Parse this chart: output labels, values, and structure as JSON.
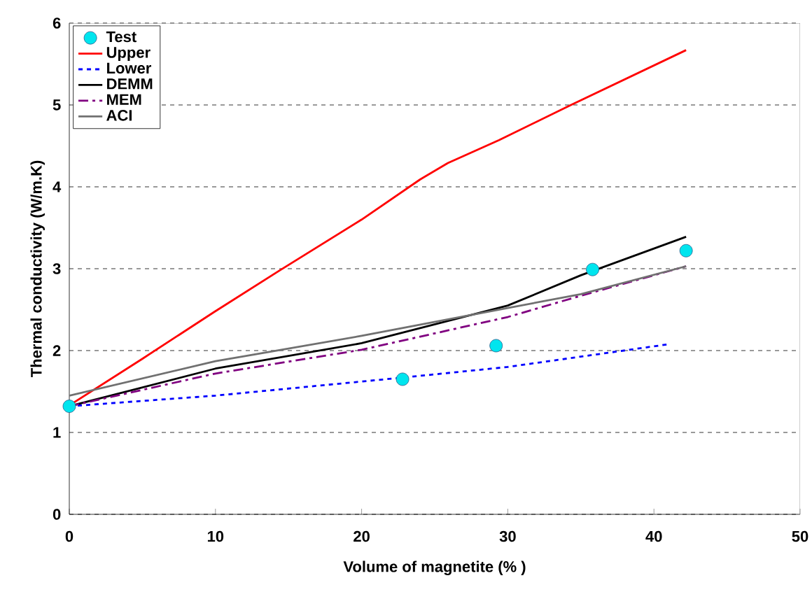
{
  "chart_data": {
    "type": "line",
    "xlabel": "Volume of magnetite (% )",
    "ylabel": "Thermal conductivity (W/m.K)",
    "xlim": [
      0,
      50
    ],
    "xticks": [
      0,
      10,
      20,
      30,
      40,
      50
    ],
    "ylim": [
      0,
      6
    ],
    "yticks": [
      0,
      1,
      2,
      3,
      4,
      5,
      6
    ],
    "grid": "y",
    "legend": "top left",
    "series": [
      {
        "name": "Test",
        "type": "scatter",
        "marker": "circle",
        "color": "#00e5ee",
        "x": [
          0,
          22.8,
          29.2,
          35.8,
          42.2
        ],
        "values": [
          1.32,
          1.65,
          2.06,
          2.99,
          3.22
        ]
      },
      {
        "name": "Upper",
        "line_style": "solid",
        "color": "#ff0000",
        "x": [
          0,
          5,
          9.9,
          14.4,
          20,
          24,
          25.9,
          29.4,
          34.2,
          42.2
        ],
        "values": [
          1.33,
          1.9,
          2.47,
          2.98,
          3.6,
          4.09,
          4.29,
          4.57,
          4.99,
          5.67
        ]
      },
      {
        "name": "Lower",
        "line_style": "dashed",
        "color": "#0000ff",
        "x": [
          0,
          10,
          22.8,
          30,
          41.1
        ],
        "values": [
          1.32,
          1.45,
          1.67,
          1.8,
          2.08
        ]
      },
      {
        "name": "DEMM",
        "line_style": "solid",
        "color": "#000000",
        "x": [
          0,
          10,
          20,
          30,
          35,
          42.2
        ],
        "values": [
          1.32,
          1.78,
          2.09,
          2.55,
          2.92,
          3.39
        ]
      },
      {
        "name": "MEM",
        "line_style": "dashdot",
        "color": "#800080",
        "x": [
          0,
          10,
          20,
          30,
          35,
          42.2
        ],
        "values": [
          1.32,
          1.72,
          2.01,
          2.41,
          2.67,
          3.03
        ]
      },
      {
        "name": "ACI",
        "line_style": "solid",
        "color": "#707070",
        "x": [
          0,
          10,
          20,
          30,
          35,
          42.2
        ],
        "values": [
          1.45,
          1.87,
          2.18,
          2.52,
          2.69,
          3.03
        ]
      }
    ]
  }
}
